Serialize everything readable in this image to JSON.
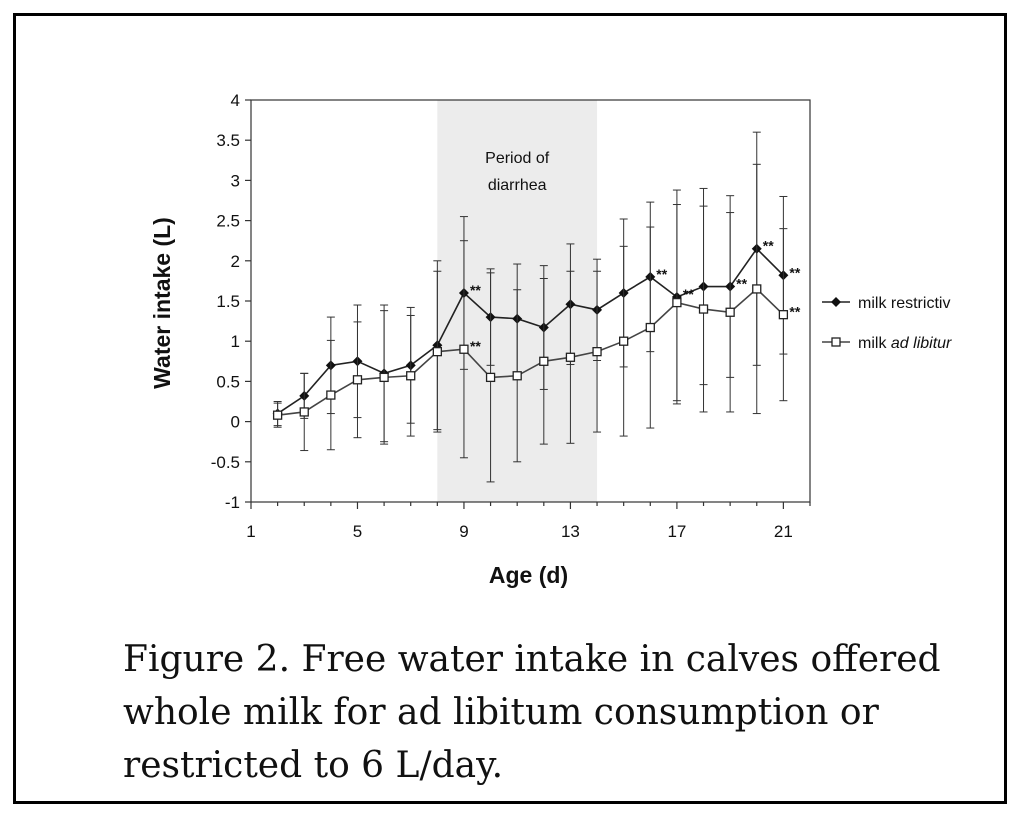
{
  "caption": "Figure 2.  Free water intake in calves offered whole milk for ad libitum consumption or restricted to 6 L/day.",
  "chart_data": {
    "type": "line",
    "xlabel": "Age (d)",
    "ylabel": "Water intake (L)",
    "xlim": [
      1,
      22
    ],
    "ylim": [
      -1,
      4
    ],
    "xticks": [
      1,
      5,
      9,
      13,
      17,
      21
    ],
    "yticks": [
      4,
      3.5,
      3,
      2.5,
      2,
      1.5,
      1,
      0.5,
      0,
      -0.5,
      -1
    ],
    "ytick_labels": [
      "4",
      "3.5",
      "3",
      "2.5",
      "2",
      "1.5",
      "1",
      "0.5",
      "0",
      "-0.5",
      "-1"
    ],
    "shaded_region": {
      "x": [
        8,
        14
      ],
      "label_line1": "Period of",
      "label_line2": "diarrhea"
    },
    "legend_position": "right",
    "series": [
      {
        "name": "milk restrictive",
        "legend_label": "milk restrictiv",
        "marker": "filled-diamond",
        "x": [
          2,
          3,
          4,
          5,
          6,
          7,
          8,
          9,
          10,
          11,
          12,
          13,
          14,
          15,
          16,
          17,
          18,
          19,
          20,
          21
        ],
        "y": [
          0.1,
          0.32,
          0.7,
          0.75,
          0.6,
          0.7,
          0.95,
          1.6,
          1.3,
          1.28,
          1.17,
          1.46,
          1.39,
          1.6,
          1.8,
          1.55,
          1.68,
          1.68,
          2.15,
          1.82
        ],
        "err": [
          0.15,
          0.28,
          0.6,
          0.7,
          0.85,
          0.72,
          1.05,
          0.95,
          0.6,
          0.68,
          0.77,
          0.75,
          0.63,
          0.92,
          0.93,
          1.33,
          1.22,
          1.13,
          1.45,
          0.98
        ]
      },
      {
        "name": "milk ad libitum",
        "legend_label_prefix": "milk ",
        "legend_label_italic": "ad libitur",
        "marker": "open-square",
        "x": [
          2,
          3,
          4,
          5,
          6,
          7,
          8,
          9,
          10,
          11,
          12,
          13,
          14,
          15,
          16,
          17,
          18,
          19,
          20,
          21
        ],
        "y": [
          0.08,
          0.12,
          0.33,
          0.52,
          0.55,
          0.57,
          0.87,
          0.9,
          0.55,
          0.57,
          0.75,
          0.8,
          0.87,
          1.0,
          1.17,
          1.48,
          1.4,
          1.36,
          1.65,
          1.33
        ],
        "err": [
          0.15,
          0.48,
          0.68,
          0.72,
          0.83,
          0.75,
          1.0,
          1.35,
          1.3,
          1.07,
          1.03,
          1.07,
          1.0,
          1.18,
          1.25,
          1.22,
          1.28,
          1.24,
          1.55,
          1.07
        ]
      }
    ],
    "annotations": [
      {
        "text": "**",
        "x": 9,
        "y": 1.6
      },
      {
        "text": "**",
        "x": 9,
        "y": 0.9
      },
      {
        "text": "**",
        "x": 16,
        "y": 1.8
      },
      {
        "text": "**",
        "x": 17,
        "y": 1.55
      },
      {
        "text": "**",
        "x": 19,
        "y": 1.68
      },
      {
        "text": "**",
        "x": 20,
        "y": 2.15
      },
      {
        "text": "**",
        "x": 21,
        "y": 1.82
      },
      {
        "text": "**",
        "x": 21,
        "y": 1.33
      }
    ]
  }
}
